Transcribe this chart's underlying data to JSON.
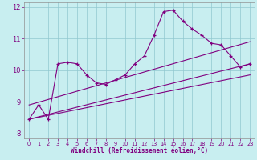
{
  "xlabel": "Windchill (Refroidissement éolien,°C)",
  "bg_color": "#c8eef0",
  "line_color": "#800080",
  "grid_color": "#90c8d0",
  "xlim": [
    -0.5,
    23.5
  ],
  "ylim": [
    7.85,
    12.15
  ],
  "yticks": [
    8,
    9,
    10,
    11,
    12
  ],
  "xticks": [
    0,
    1,
    2,
    3,
    4,
    5,
    6,
    7,
    8,
    9,
    10,
    11,
    12,
    13,
    14,
    15,
    16,
    17,
    18,
    19,
    20,
    21,
    22,
    23
  ],
  "line1_x": [
    0,
    1,
    2,
    3,
    4,
    5,
    6,
    7,
    8,
    9,
    10,
    11,
    12,
    13,
    14,
    15,
    16,
    17,
    18,
    19,
    20,
    21,
    22,
    23
  ],
  "line1_y": [
    8.45,
    8.9,
    8.45,
    10.2,
    10.25,
    10.2,
    9.85,
    9.6,
    9.55,
    9.7,
    9.85,
    10.2,
    10.45,
    11.1,
    11.85,
    11.9,
    11.55,
    11.3,
    11.1,
    10.85,
    10.8,
    10.45,
    10.1,
    10.2
  ],
  "line2_x": [
    0,
    23
  ],
  "line2_y": [
    8.9,
    10.9
  ],
  "line3_x": [
    0,
    23
  ],
  "line3_y": [
    8.45,
    10.2
  ],
  "line4_x": [
    0,
    23
  ],
  "line4_y": [
    8.45,
    9.85
  ]
}
